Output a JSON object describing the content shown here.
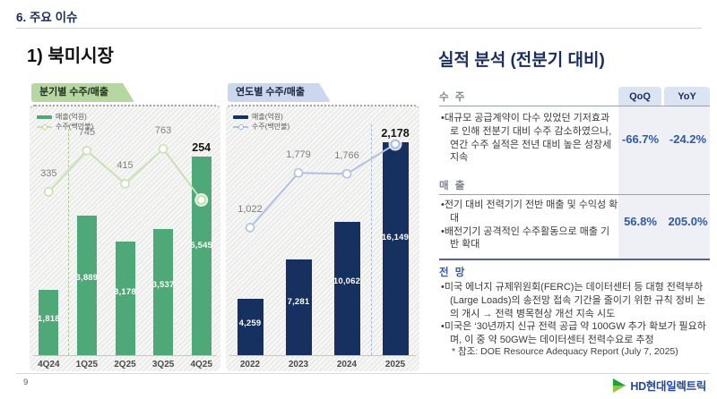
{
  "slide": {
    "section_title": "6. 주요 이슈",
    "page_number": "9",
    "left": {
      "heading": "1) 북미시장"
    },
    "right": {
      "heading": "실적 분석 (전분기 대비)",
      "table": {
        "col_headers": [
          "QoQ",
          "YoY"
        ],
        "sections": [
          {
            "label": "수 주",
            "bullets": [
              "대규모 공급계약이 다수 있었던 기저효과로 인해 전분기 대비 수주 감소하였으나, 연간 수주 실적은 전년 대비 높은 성장세 지속"
            ],
            "values": [
              "-66.7%",
              "-24.2%"
            ]
          },
          {
            "label": "매 출",
            "bullets": [
              "전기 대비 전력기기 전반 매출 및 수익성 확대",
              "배전기기 공격적인 수주활동으로 매출 기반 확대"
            ],
            "values": [
              "56.8%",
              "205.0%"
            ]
          }
        ]
      },
      "outlook": {
        "label": "전 망",
        "bullets": [
          "미국 에너지 규제위원회(FERC)는 데이터센터 등 대형 전력부하(Large Loads)의 송전망 접속 기간을 줄이기 위한 규칙 정비 논의 개시 → 전력 병목현상 개선 지속 시도",
          "미국은 ‘30년까지 신규 전력 공급 약 100GW 추가 확보가 필요하며, 이 중 약 50GW는 데이터센터 전력수요로 추정"
        ],
        "footnote": "* 참조: DOE Resource Adequacy Report (July 7, 2025)"
      }
    },
    "footer": {
      "logo_text": "HD현대일렉트릭"
    }
  },
  "chart_data": [
    {
      "type": "bar+line",
      "title": "분기별 수주/매출",
      "categories": [
        "4Q24",
        "1Q25",
        "2Q25",
        "3Q25",
        "4Q25"
      ],
      "series": [
        {
          "name": "매출(억원)",
          "type": "bar",
          "values": [
            1818,
            3889,
            3178,
            3537,
            5545
          ],
          "labels": [
            "1,818",
            "3,889",
            "3,178",
            "3,537",
            "5,545"
          ],
          "color": "#4fa877"
        },
        {
          "name": "수주(백만불)",
          "type": "line",
          "values": [
            335,
            745,
            415,
            763,
            254
          ],
          "labels": [
            "335",
            "745",
            "415",
            "763",
            "254"
          ],
          "color": "#c9e0b5"
        }
      ],
      "bar_ylim": [
        0,
        6000
      ],
      "line_ylim": [
        0,
        900
      ],
      "grid": "off",
      "legend_position": "top-left",
      "separator_after_index": 0,
      "highlight_last": true
    },
    {
      "type": "bar+line",
      "title": "연도별 수주/매출",
      "categories": [
        "2022",
        "2023",
        "2024",
        "2025"
      ],
      "series": [
        {
          "name": "매출(억원)",
          "type": "bar",
          "values": [
            4259,
            7281,
            10062,
            16149
          ],
          "labels": [
            "4,259",
            "7,281",
            "10,062",
            "16,149"
          ],
          "color": "#16305f"
        },
        {
          "name": "수주(백만불)",
          "type": "line",
          "values": [
            1022,
            1779,
            1766,
            2178
          ],
          "labels": [
            "1,022",
            "1,779",
            "1,766",
            "2,178"
          ],
          "color": "#aec1e3"
        }
      ],
      "bar_ylim": [
        0,
        16250
      ],
      "line_ylim": [
        0,
        2500
      ],
      "grid": "off",
      "legend_position": "top-left",
      "separator_after_index": 2,
      "highlight_last": true
    }
  ]
}
